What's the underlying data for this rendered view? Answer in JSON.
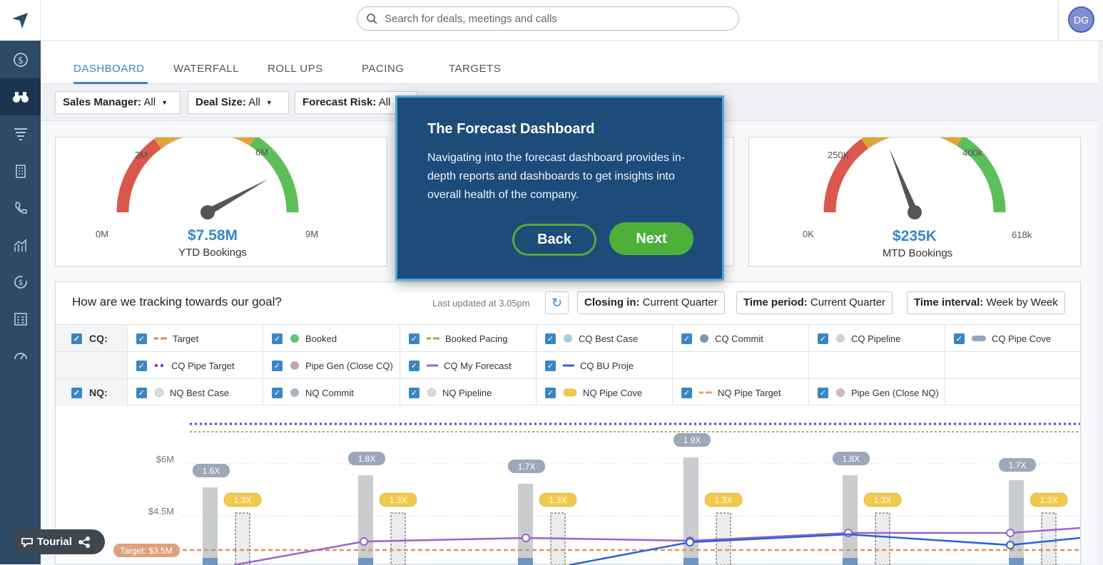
{
  "search": {
    "placeholder": "Search for deals, meetings and calls"
  },
  "user": {
    "initials": "DG"
  },
  "sidebar": {
    "items": [
      {
        "icon": "dollar-icon"
      },
      {
        "icon": "binoculars-icon",
        "active": true
      },
      {
        "icon": "funnel-icon"
      },
      {
        "icon": "building-icon"
      },
      {
        "icon": "phone-icon"
      },
      {
        "icon": "bar-chart-icon"
      },
      {
        "icon": "refresh-dollar-icon"
      },
      {
        "icon": "table-icon"
      },
      {
        "icon": "speedometer-icon"
      }
    ]
  },
  "tabs": [
    "DASHBOARD",
    "WATERFALL",
    "ROLL UPS",
    "PACING",
    "TARGETS"
  ],
  "filters": [
    {
      "label": "Sales Manager:",
      "value": "All"
    },
    {
      "label": "Deal Size:",
      "value": "All"
    },
    {
      "label": "Forecast Risk:",
      "value": "All"
    }
  ],
  "gauges": {
    "ytd": {
      "value": "$7.58M",
      "label": "YTD Bookings",
      "ticks": [
        "0M",
        "3M",
        "6M",
        "9M"
      ],
      "fraction": 0.84
    },
    "mtd": {
      "value": "$235K",
      "label": "MTD Bookings",
      "ticks": [
        "0K",
        "250K",
        "400k",
        "618k"
      ],
      "fraction": 0.38
    }
  },
  "tracking": {
    "title": "How are we tracking towards our goal?",
    "updated": "Last updated at 3.05pm",
    "closing_in_label": "Closing in:",
    "closing_in_value": "Current Quarter",
    "time_period_label": "Time period:",
    "time_period_value": "Current Quarter",
    "time_interval_label": "Time interval:",
    "time_interval_value": "Week by Week",
    "cq_head": "CQ:",
    "nq_head": "NQ:",
    "cq_row1": [
      "Target",
      "Booked",
      "Booked Pacing",
      "CQ Best Case",
      "CQ Commit",
      "CQ Pipeline",
      "CQ Pipe Cove"
    ],
    "cq_row2": [
      "CQ Pipe Target",
      "Pipe Gen (Close CQ)",
      "CQ My Forecast",
      "CQ BU Proje"
    ],
    "nq_row": [
      "NQ Best Case",
      "NQ Commit",
      "NQ Pipeline",
      "NQ Pipe Cove",
      "NQ Pipe Target",
      "Pipe Gen (Close NQ)"
    ]
  },
  "chart_data": {
    "type": "bar",
    "y_ticks": [
      "$6M",
      "$4.5M"
    ],
    "target_label": "Target: $3.5M",
    "coverage_labels": [
      "1.6X",
      "1.8X",
      "1.7X",
      "1.9X",
      "1.8X",
      "1.7X"
    ],
    "nq_coverage_labels": [
      "1.3X",
      "1.3X",
      "1.3X",
      "1.3X",
      "1.3X",
      "1.3X"
    ]
  },
  "modal": {
    "title": "The Forecast Dashboard",
    "body": "Navigating into the forecast dashboard provides in-depth reports and dashboards to get insights into overall health of the company.",
    "back": "Back",
    "next": "Next"
  },
  "badge": {
    "label": "Tourial"
  }
}
